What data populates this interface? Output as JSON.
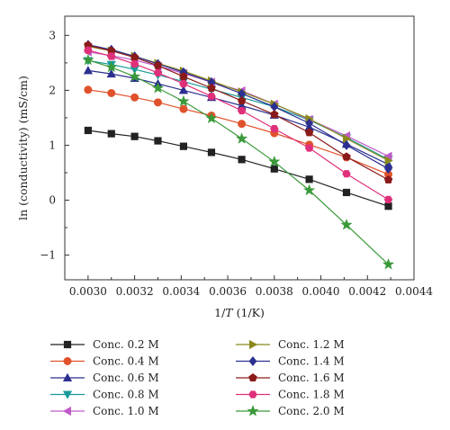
{
  "chart_data": {
    "type": "line",
    "title": "",
    "xlabel_prefix": "1/",
    "xlabel_var": "T",
    "xlabel_suffix": " (1/K)",
    "ylabel": "ln (conductivity) (mS/cm)",
    "xlim": [
      0.0029,
      0.0044
    ],
    "ylim": [
      -1.45,
      3.35
    ],
    "xticks": [
      0.003,
      0.0032,
      0.0034,
      0.0036,
      0.0038,
      0.004,
      0.0042,
      0.0044
    ],
    "xtick_labels": [
      "0.0030",
      "0.0032",
      "0.0034",
      "0.0036",
      "0.0038",
      "0.0040",
      "0.0042",
      "0.0044"
    ],
    "yticks": [
      -1,
      0,
      1,
      2,
      3
    ],
    "ytick_labels": [
      "−1",
      "0",
      "1",
      "2",
      "3"
    ],
    "x": [
      0.003,
      0.0031,
      0.0032,
      0.0033,
      0.00341,
      0.00353,
      0.00366,
      0.0038,
      0.00395,
      0.00411,
      0.00429
    ],
    "grid": false,
    "legend_position": "below",
    "series": [
      {
        "name": "Conc. 0.2 M",
        "color": "#222222",
        "marker": "square",
        "values": [
          1.27,
          1.21,
          1.16,
          1.08,
          0.98,
          0.87,
          0.74,
          0.57,
          0.38,
          0.14,
          -0.11
        ]
      },
      {
        "name": "Conc. 0.4 M",
        "color": "#e0522b",
        "marker": "circle",
        "values": [
          2.01,
          1.95,
          1.87,
          1.78,
          1.66,
          1.54,
          1.39,
          1.22,
          1.01,
          0.78,
          0.47
        ]
      },
      {
        "name": "Conc. 0.6 M",
        "color": "#2b2f8f",
        "marker": "triangle-up",
        "values": [
          2.36,
          2.3,
          2.22,
          2.12,
          2.0,
          1.87,
          1.72,
          1.55,
          1.33,
          1.02,
          0.65
        ]
      },
      {
        "name": "Conc. 0.8 M",
        "color": "#1a9a9a",
        "marker": "triangle-down",
        "values": [
          2.54,
          2.47,
          2.38,
          2.28,
          2.16,
          2.02,
          1.87,
          1.7,
          1.46,
          1.14,
          0.74
        ]
      },
      {
        "name": "Conc. 1.0 M",
        "color": "#c05ac8",
        "marker": "triangle-left",
        "values": [
          2.7,
          2.63,
          2.55,
          2.44,
          2.31,
          2.15,
          1.99,
          1.75,
          1.47,
          1.17,
          0.8
        ]
      },
      {
        "name": "Conc. 1.2 M",
        "color": "#8a8a1c",
        "marker": "triangle-right",
        "values": [
          2.8,
          2.72,
          2.62,
          2.49,
          2.35,
          2.17,
          1.97,
          1.75,
          1.48,
          1.12,
          0.72
        ]
      },
      {
        "name": "Conc. 1.4 M",
        "color": "#2b2f8f",
        "marker": "diamond",
        "values": [
          2.83,
          2.74,
          2.62,
          2.48,
          2.33,
          2.15,
          1.94,
          1.7,
          1.4,
          1.0,
          0.57
        ]
      },
      {
        "name": "Conc. 1.6 M",
        "color": "#8b1a1a",
        "marker": "pentagon",
        "values": [
          2.82,
          2.72,
          2.6,
          2.45,
          2.25,
          2.04,
          1.81,
          1.56,
          1.23,
          0.79,
          0.37
        ]
      },
      {
        "name": "Conc. 1.8 M",
        "color": "#e0307a",
        "marker": "hexagon",
        "values": [
          2.73,
          2.62,
          2.48,
          2.32,
          2.12,
          1.89,
          1.63,
          1.3,
          0.95,
          0.48,
          0.01
        ]
      },
      {
        "name": "Conc. 2.0 M",
        "color": "#3a9a3a",
        "marker": "star",
        "values": [
          2.55,
          2.42,
          2.25,
          2.04,
          1.8,
          1.49,
          1.12,
          0.7,
          0.18,
          -0.45,
          -1.17
        ]
      }
    ]
  }
}
